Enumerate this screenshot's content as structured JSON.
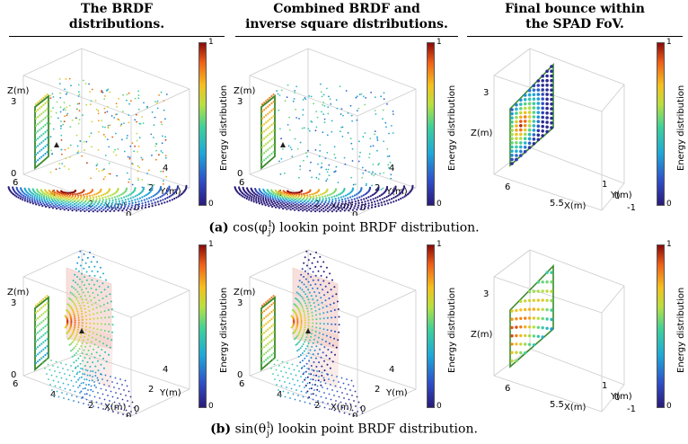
{
  "columns": [
    {
      "title_line1": "The BRDF",
      "title_line2": "distributions."
    },
    {
      "title_line1": "Combined BRDF and",
      "title_line2": "inverse square distributions."
    },
    {
      "title_line1": "Final bounce within",
      "title_line2": "the SPAD FoV."
    }
  ],
  "captions": {
    "a_label": "(a)",
    "a_math": "cos(φ",
    "a_sup": "1",
    "a_sub": "j",
    "a_text": ") lookin point BRDF distribution.",
    "b_label": "(b)",
    "b_math": "sin(θ",
    "b_sup": "1",
    "b_sub": "j",
    "b_text": ") lookin point BRDF distribution."
  },
  "colorbar": {
    "title": "Energy distribution",
    "min_label": "0",
    "max_label": "1"
  },
  "chart_data": [
    {
      "type": "scatter",
      "title": "The BRDF distributions.",
      "row": "a",
      "xlabel": "X(m)",
      "ylabel": "Y(m)",
      "zlabel": "Z(m)",
      "xticks": [
        "6",
        "4",
        "2",
        "0"
      ],
      "yticks": [
        "0",
        "2",
        "4"
      ],
      "zticks": [
        "0",
        "3"
      ],
      "colorbar_range": [
        0,
        1
      ]
    },
    {
      "type": "scatter",
      "title": "Combined BRDF and inverse square distributions.",
      "row": "a",
      "xlabel": "X(m)",
      "ylabel": "Y(m)",
      "zlabel": "Z(m)",
      "xticks": [
        "6",
        "4",
        "2",
        "0"
      ],
      "yticks": [
        "0",
        "2",
        "4"
      ],
      "zticks": [
        "0",
        "3"
      ],
      "colorbar_range": [
        0,
        1
      ]
    },
    {
      "type": "scatter",
      "title": "Final bounce within the SPAD FoV.",
      "row": "a",
      "xlabel": "X(m)",
      "ylabel": "Y(m)",
      "zlabel": "Z(m)",
      "xticks": [
        "6",
        "5.5"
      ],
      "yticks": [
        "-1",
        "0",
        "1"
      ],
      "zticks": [
        "3"
      ],
      "colorbar_range": [
        0,
        1
      ]
    },
    {
      "type": "scatter",
      "title": "The BRDF distributions.",
      "row": "b",
      "xlabel": "X(m)",
      "ylabel": "Y(m)",
      "zlabel": "Z(m)",
      "xticks": [
        "6",
        "4",
        "2",
        "0"
      ],
      "yticks": [
        "0",
        "2",
        "4"
      ],
      "zticks": [
        "0",
        "3"
      ],
      "colorbar_range": [
        0,
        1
      ]
    },
    {
      "type": "scatter",
      "title": "Combined BRDF and inverse square distributions.",
      "row": "b",
      "xlabel": "X(m)",
      "ylabel": "Y(m)",
      "zlabel": "Z(m)",
      "xticks": [
        "6",
        "4",
        "2",
        "0"
      ],
      "yticks": [
        "0",
        "2",
        "4"
      ],
      "zticks": [
        "0",
        "3"
      ],
      "colorbar_range": [
        0,
        1
      ]
    },
    {
      "type": "scatter",
      "title": "Final bounce within the SPAD FoV.",
      "row": "b",
      "xlabel": "X(m)",
      "ylabel": "Y(m)",
      "zlabel": "Z(m)",
      "xticks": [
        "6",
        "5.5"
      ],
      "yticks": [
        "-1",
        "0",
        "1"
      ],
      "zticks": [
        "3"
      ],
      "colorbar_range": [
        0,
        1
      ]
    }
  ]
}
